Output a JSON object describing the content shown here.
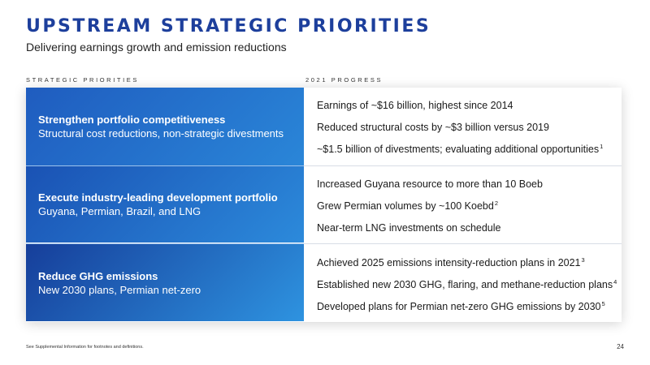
{
  "title": "UPSTREAM STRATEGIC PRIORITIES",
  "subtitle": "Delivering earnings growth and emission reductions",
  "columns": {
    "left": "STRATEGIC PRIORITIES",
    "right": "2021 PROGRESS"
  },
  "rows": [
    {
      "heading": "Strengthen portfolio competitiveness",
      "sub": "Structural cost reductions, non-strategic divestments",
      "progress": [
        {
          "text": "Earnings of ~$16 billion, highest since 2014",
          "sup": ""
        },
        {
          "text": "Reduced structural costs by ~$3 billion versus 2019",
          "sup": ""
        },
        {
          "text": "~$1.5 billion of divestments; evaluating additional opportunities",
          "sup": "1"
        }
      ]
    },
    {
      "heading": "Execute industry-leading development portfolio",
      "sub": "Guyana, Permian, Brazil, and LNG",
      "progress": [
        {
          "text": "Increased Guyana resource to more than 10 Boeb",
          "sup": ""
        },
        {
          "text": "Grew Permian volumes by ~100 Koebd",
          "sup": "2"
        },
        {
          "text": "Near-term LNG investments on schedule",
          "sup": ""
        }
      ]
    },
    {
      "heading": "Reduce GHG emissions",
      "sub": "New 2030 plans, Permian net-zero",
      "progress": [
        {
          "text": "Achieved 2025 emissions intensity-reduction plans in 2021",
          "sup": "3"
        },
        {
          "text": "Established new 2030 GHG, flaring, and methane-reduction plans",
          "sup": "4"
        },
        {
          "text": "Developed plans for Permian net-zero GHG emissions by 2030",
          "sup": "5"
        }
      ]
    }
  ],
  "footnote": "See Supplemental Information for footnotes and definitions.",
  "page_number": "24",
  "colors": {
    "title": "#1d3f9c",
    "cell_dark": "#1a52b4",
    "cell_light": "#2c8adb"
  }
}
